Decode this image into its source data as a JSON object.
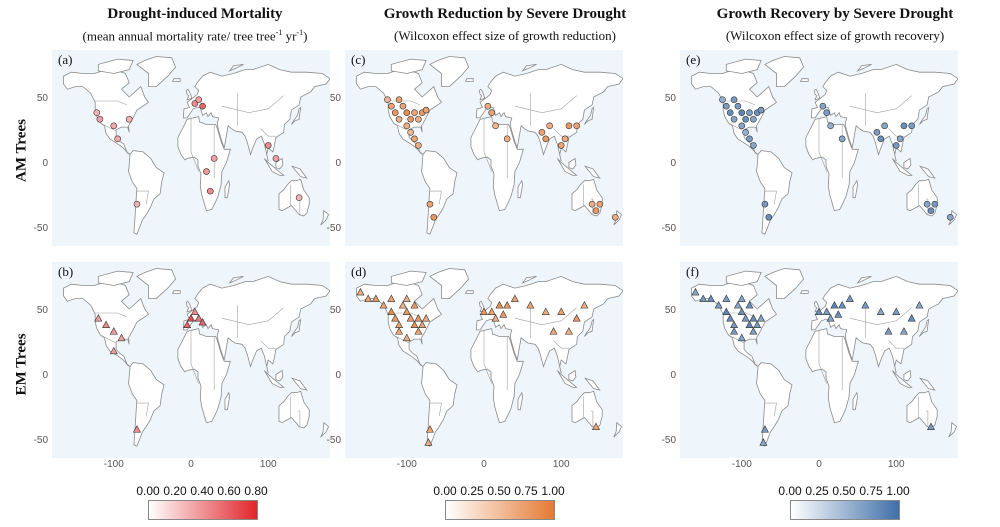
{
  "columns": [
    {
      "title": "Drought-induced Mortality",
      "subtitle_main": "(mean annual mortality rate/ tree tree",
      "subtitle_sup1": "-1",
      "subtitle_mid": " yr",
      "subtitle_sup2": "-1",
      "subtitle_end": ")",
      "color": "#e0332a"
    },
    {
      "title": "Growth Reduction by Severe Drought",
      "subtitle": "(Wilcoxon effect size of growth reduction)",
      "color": "#e0733a"
    },
    {
      "title": "Growth Recovery by Severe Drought",
      "subtitle": "(Wilcoxon effect size of growth recovery)",
      "color": "#4a78b0"
    }
  ],
  "rows": [
    "AM Trees",
    "EM Trees"
  ],
  "panel_letters": [
    "(a)",
    "(c)",
    "(e)",
    "(b)",
    "(d)",
    "(f)"
  ],
  "ticks": {
    "lat": [
      "50",
      "0",
      "-50"
    ],
    "lon": [
      "-100",
      "0",
      "100"
    ]
  },
  "colorbars": [
    {
      "labels": [
        "0.00",
        "0.20",
        "0.40",
        "0.60",
        "0.80"
      ],
      "from": "#ffffff",
      "to": "#e0252a"
    },
    {
      "labels": [
        "0.00",
        "0.25",
        "0.50",
        "0.75",
        "1.00"
      ],
      "from": "#ffffff",
      "to": "#e47a34"
    },
    {
      "labels": [
        "0.00",
        "0.25",
        "0.50",
        "0.75",
        "1.00"
      ],
      "from": "#ffffff",
      "to": "#3f6fa8"
    }
  ],
  "chart_data": [
    {
      "type": "scatter",
      "panel": "(a)",
      "title": "Drought-induced Mortality",
      "row": "AM Trees",
      "marker": "circle",
      "points": [
        [
          -122,
          40,
          0.1
        ],
        [
          -118,
          35,
          0.2
        ],
        [
          -100,
          30,
          0.15
        ],
        [
          -80,
          35,
          0.1
        ],
        [
          5,
          47,
          0.3
        ],
        [
          15,
          45,
          0.5
        ],
        [
          10,
          50,
          0.2
        ],
        [
          -70,
          -30,
          0.1
        ],
        [
          20,
          -5,
          0.25
        ],
        [
          25,
          -20,
          0.3
        ],
        [
          30,
          5,
          0.2
        ],
        [
          100,
          15,
          0.3
        ],
        [
          110,
          5,
          0.2
        ],
        [
          140,
          -25,
          0.1
        ],
        [
          -95,
          20,
          0.15
        ]
      ]
    },
    {
      "type": "scatter",
      "panel": "(b)",
      "title": "Drought-induced Mortality",
      "row": "EM Trees",
      "marker": "triangle",
      "points": [
        [
          -120,
          45,
          0.2
        ],
        [
          -110,
          40,
          0.3
        ],
        [
          -100,
          35,
          0.25
        ],
        [
          -90,
          30,
          0.2
        ],
        [
          -5,
          40,
          0.5
        ],
        [
          0,
          45,
          0.6
        ],
        [
          10,
          45,
          0.4
        ],
        [
          5,
          50,
          0.3
        ],
        [
          15,
          42,
          0.5
        ],
        [
          -100,
          20,
          0.2
        ],
        [
          -70,
          -40,
          0.3
        ]
      ]
    },
    {
      "type": "scatter",
      "panel": "(c)",
      "title": "Growth Reduction by Severe Drought",
      "row": "AM Trees",
      "marker": "circle",
      "points": [
        [
          -120,
          45,
          0.6
        ],
        [
          -115,
          40,
          0.7
        ],
        [
          -110,
          35,
          0.5
        ],
        [
          -105,
          45,
          0.6
        ],
        [
          -100,
          40,
          0.8
        ],
        [
          -95,
          35,
          0.7
        ],
        [
          -90,
          40,
          0.6
        ],
        [
          -85,
          35,
          0.5
        ],
        [
          -80,
          40,
          0.7
        ],
        [
          -75,
          42,
          0.6
        ],
        [
          -100,
          30,
          0.5
        ],
        [
          -95,
          25,
          0.4
        ],
        [
          -90,
          20,
          0.6
        ],
        [
          -85,
          15,
          0.5
        ],
        [
          -70,
          -30,
          0.6
        ],
        [
          -65,
          -40,
          0.7
        ],
        [
          5,
          45,
          0.5
        ],
        [
          10,
          40,
          0.6
        ],
        [
          15,
          30,
          0.4
        ],
        [
          30,
          20,
          0.5
        ],
        [
          75,
          25,
          0.6
        ],
        [
          80,
          20,
          0.7
        ],
        [
          85,
          30,
          0.5
        ],
        [
          100,
          15,
          0.6
        ],
        [
          105,
          20,
          0.5
        ],
        [
          110,
          30,
          0.7
        ],
        [
          120,
          30,
          0.6
        ],
        [
          140,
          -30,
          0.5
        ],
        [
          145,
          -35,
          0.7
        ],
        [
          150,
          -30,
          0.6
        ],
        [
          170,
          -40,
          0.5
        ],
        [
          -125,
          50,
          0.4
        ],
        [
          -110,
          50,
          0.6
        ]
      ]
    },
    {
      "type": "scatter",
      "panel": "(d)",
      "title": "Growth Reduction by Severe Drought",
      "row": "EM Trees",
      "marker": "triangle",
      "points": [
        [
          -160,
          65,
          0.5
        ],
        [
          -150,
          60,
          0.6
        ],
        [
          -140,
          60,
          0.7
        ],
        [
          -130,
          55,
          0.6
        ],
        [
          -120,
          50,
          0.8
        ],
        [
          -115,
          45,
          0.7
        ],
        [
          -110,
          40,
          0.6
        ],
        [
          -105,
          55,
          0.5
        ],
        [
          -100,
          50,
          0.7
        ],
        [
          -95,
          45,
          0.6
        ],
        [
          -90,
          40,
          0.8
        ],
        [
          -85,
          45,
          0.7
        ],
        [
          -80,
          40,
          0.6
        ],
        [
          -75,
          45,
          0.5
        ],
        [
          -120,
          60,
          0.6
        ],
        [
          -100,
          60,
          0.5
        ],
        [
          -90,
          55,
          0.7
        ],
        [
          -110,
          35,
          0.6
        ],
        [
          -100,
          30,
          0.5
        ],
        [
          -85,
          35,
          0.6
        ],
        [
          0,
          50,
          0.7
        ],
        [
          10,
          50,
          0.6
        ],
        [
          20,
          55,
          0.8
        ],
        [
          30,
          55,
          0.7
        ],
        [
          40,
          60,
          0.6
        ],
        [
          15,
          45,
          0.5
        ],
        [
          25,
          48,
          0.7
        ],
        [
          60,
          55,
          0.6
        ],
        [
          80,
          50,
          0.5
        ],
        [
          100,
          50,
          0.6
        ],
        [
          120,
          45,
          0.7
        ],
        [
          130,
          55,
          0.5
        ],
        [
          90,
          35,
          0.6
        ],
        [
          110,
          35,
          0.5
        ],
        [
          -70,
          -40,
          0.6
        ],
        [
          -72,
          -50,
          0.5
        ],
        [
          145,
          -38,
          0.6
        ]
      ]
    },
    {
      "type": "scatter",
      "panel": "(e)",
      "title": "Growth Recovery by Severe Drought",
      "row": "AM Trees",
      "marker": "circle",
      "points": [
        [
          -120,
          45,
          0.6
        ],
        [
          -115,
          40,
          0.7
        ],
        [
          -110,
          35,
          0.5
        ],
        [
          -105,
          45,
          0.6
        ],
        [
          -100,
          40,
          0.8
        ],
        [
          -95,
          35,
          0.7
        ],
        [
          -90,
          40,
          0.6
        ],
        [
          -85,
          35,
          0.5
        ],
        [
          -80,
          40,
          0.7
        ],
        [
          -75,
          42,
          0.6
        ],
        [
          -100,
          30,
          0.5
        ],
        [
          -95,
          25,
          0.4
        ],
        [
          -90,
          20,
          0.6
        ],
        [
          -85,
          15,
          0.5
        ],
        [
          -70,
          -30,
          0.6
        ],
        [
          -65,
          -40,
          0.7
        ],
        [
          5,
          45,
          0.5
        ],
        [
          10,
          40,
          0.6
        ],
        [
          15,
          30,
          0.4
        ],
        [
          30,
          20,
          0.5
        ],
        [
          75,
          25,
          0.6
        ],
        [
          80,
          20,
          0.7
        ],
        [
          85,
          30,
          0.5
        ],
        [
          100,
          15,
          0.6
        ],
        [
          105,
          20,
          0.5
        ],
        [
          110,
          30,
          0.7
        ],
        [
          120,
          30,
          0.6
        ],
        [
          140,
          -30,
          0.5
        ],
        [
          145,
          -35,
          0.7
        ],
        [
          150,
          -30,
          0.6
        ],
        [
          170,
          -40,
          0.5
        ],
        [
          -125,
          50,
          0.4
        ],
        [
          -110,
          50,
          0.6
        ]
      ]
    },
    {
      "type": "scatter",
      "panel": "(f)",
      "title": "Growth Recovery by Severe Drought",
      "row": "EM Trees",
      "marker": "triangle",
      "points": [
        [
          -160,
          65,
          0.5
        ],
        [
          -150,
          60,
          0.6
        ],
        [
          -140,
          60,
          0.7
        ],
        [
          -130,
          55,
          0.6
        ],
        [
          -120,
          50,
          0.8
        ],
        [
          -115,
          45,
          0.7
        ],
        [
          -110,
          40,
          0.6
        ],
        [
          -105,
          55,
          0.5
        ],
        [
          -100,
          50,
          0.7
        ],
        [
          -95,
          45,
          0.6
        ],
        [
          -90,
          40,
          0.8
        ],
        [
          -85,
          45,
          0.7
        ],
        [
          -80,
          40,
          0.6
        ],
        [
          -75,
          45,
          0.5
        ],
        [
          -120,
          60,
          0.6
        ],
        [
          -100,
          60,
          0.5
        ],
        [
          -90,
          55,
          0.7
        ],
        [
          -110,
          35,
          0.6
        ],
        [
          -100,
          30,
          0.5
        ],
        [
          -85,
          35,
          0.6
        ],
        [
          0,
          50,
          0.7
        ],
        [
          10,
          50,
          0.6
        ],
        [
          20,
          55,
          0.8
        ],
        [
          30,
          55,
          0.7
        ],
        [
          40,
          60,
          0.6
        ],
        [
          15,
          45,
          0.5
        ],
        [
          25,
          48,
          0.7
        ],
        [
          60,
          55,
          0.6
        ],
        [
          80,
          50,
          0.5
        ],
        [
          100,
          50,
          0.6
        ],
        [
          120,
          45,
          0.7
        ],
        [
          130,
          55,
          0.5
        ],
        [
          90,
          35,
          0.6
        ],
        [
          110,
          35,
          0.5
        ],
        [
          -70,
          -40,
          0.6
        ],
        [
          -72,
          -50,
          0.5
        ],
        [
          145,
          -38,
          0.6
        ]
      ]
    }
  ]
}
